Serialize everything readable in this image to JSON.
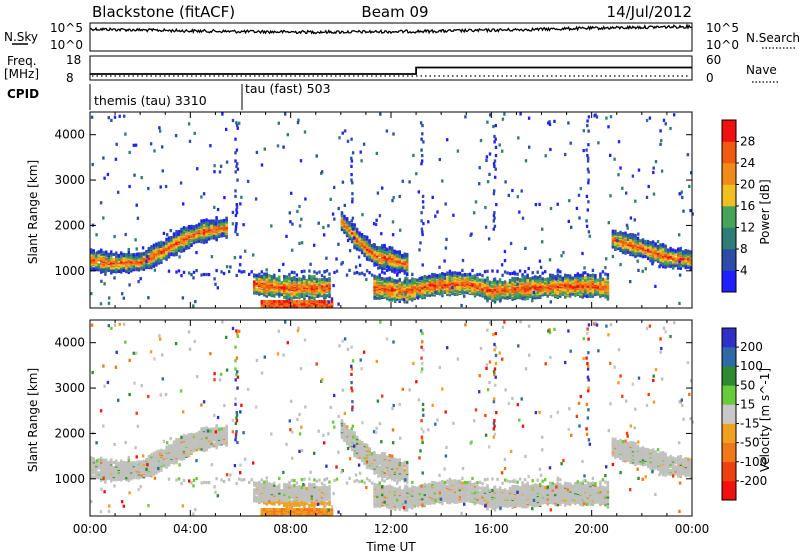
{
  "header": {
    "station": "Blackstone (fitACF)",
    "beam": "Beam 09",
    "date": "14/Jul/2012"
  },
  "left_labels": {
    "nsky": "N.Sky",
    "freq_line1": "Freq.",
    "freq_line2": "[MHz]",
    "cpid": "CPID"
  },
  "right_labels": {
    "nsearch": "N.Search",
    "nave": "Nave"
  },
  "colors": {
    "power": [
      "#2020ff",
      "#2c4ca8",
      "#2f7d76",
      "#46a35a",
      "#f0c020",
      "#f08a18",
      "#f05a10",
      "#f01010"
    ],
    "velocity": [
      "#3030c8",
      "#2e6aa8",
      "#2e8a2e",
      "#6acb3a",
      "#c8c8c8",
      "#f0a020",
      "#f07818",
      "#f04010",
      "#f01010"
    ],
    "gray_flag": "#c0c0bc"
  },
  "chart_data": [
    {
      "type": "line",
      "name": "noise",
      "left_ticks": [
        "10^5",
        "10^0"
      ],
      "right_ticks": [
        "10^5",
        "10^0"
      ]
    },
    {
      "type": "line",
      "name": "frequency",
      "left_ticks": [
        "18",
        "8"
      ],
      "right_ticks": [
        "60",
        "0"
      ],
      "series": [
        {
          "x": [
            0,
            13.0,
            13.0,
            24
          ],
          "y": [
            10.5,
            10.5,
            13.2,
            13.2
          ]
        }
      ]
    },
    {
      "type": "table",
      "name": "cpid",
      "segments": [
        {
          "label": "themis (tau) 3310",
          "start": 0,
          "end": 6.0
        },
        {
          "label": "tau (fast) 503",
          "start": 6.0,
          "end": 24
        }
      ]
    },
    {
      "type": "heatmap",
      "name": "power",
      "ylabel": "Slant Range [km]",
      "ylim": [
        180,
        4500
      ],
      "yticks": [
        1000,
        2000,
        3000,
        4000
      ],
      "colorbar_label": "Power [dB]",
      "colorbar_ticks": [
        "4",
        "8",
        "12",
        "16",
        "20",
        "24",
        "28"
      ],
      "bands": [
        {
          "t": [
            0,
            0.8,
            2.0,
            2.9,
            3.5,
            4.3,
            4.9,
            5.4
          ],
          "r": [
            1250,
            1180,
            1200,
            1450,
            1650,
            1850,
            1920,
            1960
          ]
        },
        {
          "t": [
            10.0,
            10.6,
            11.3,
            12.0,
            12.6
          ],
          "r": [
            2100,
            1700,
            1350,
            1250,
            1150
          ]
        },
        {
          "t": [
            11.3,
            12.5,
            13.8,
            15.0,
            16.0,
            17.0,
            18.5,
            20.0,
            20.7
          ],
          "r": [
            640,
            560,
            700,
            720,
            560,
            620,
            660,
            680,
            620
          ]
        },
        {
          "t": [
            6.5,
            8.0,
            9.5
          ],
          "r": [
            720,
            620,
            640
          ]
        },
        {
          "t": [
            20.8,
            22.0,
            23.0,
            24.0
          ],
          "r": [
            1700,
            1500,
            1300,
            1250
          ]
        }
      ]
    },
    {
      "type": "heatmap",
      "name": "velocity",
      "ylabel": "Slant Range [km]",
      "ylim": [
        180,
        4500
      ],
      "yticks": [
        1000,
        2000,
        3000,
        4000
      ],
      "xlabel": "Time UT",
      "xticks": [
        "00:00",
        "04:00",
        "08:00",
        "12:00",
        "16:00",
        "20:00",
        "00:00"
      ],
      "colorbar_label": "Velocity [m s^-1]",
      "colorbar_ticks": [
        "200",
        "100",
        "50",
        "15",
        "-15",
        "-50",
        "-100",
        "-200"
      ]
    }
  ]
}
